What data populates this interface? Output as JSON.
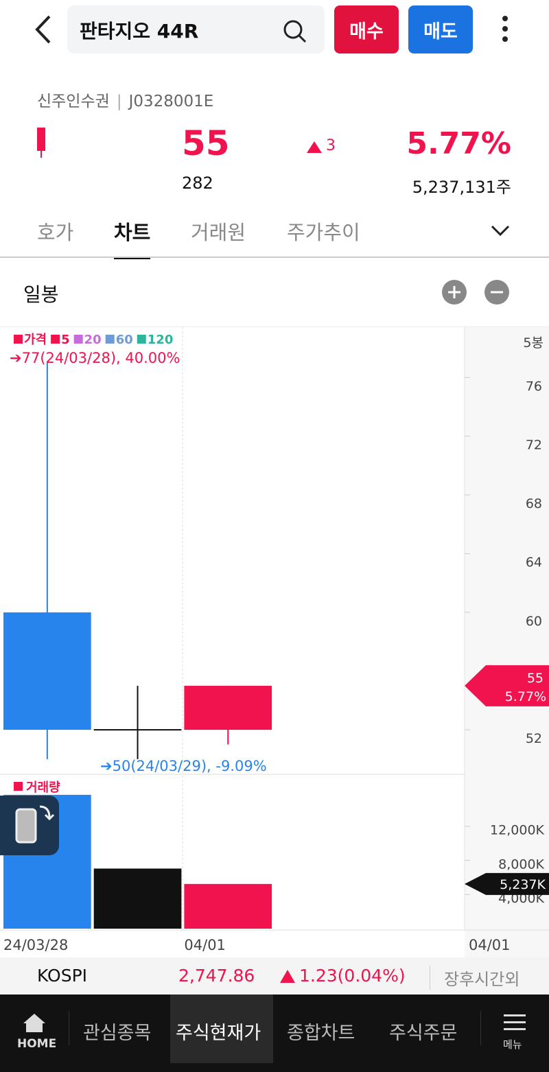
{
  "header": {
    "title": "판타지오 44R",
    "buy": "매수",
    "sell": "매도"
  },
  "info": {
    "kind": "신주인수권",
    "code": "J0328001E",
    "price": "55",
    "change": "3",
    "sub_value": "282",
    "change_rate": "5.77%",
    "volume": "5,237,131주"
  },
  "tabs": [
    "호가",
    "차트",
    "거래원",
    "주가추이"
  ],
  "chart_period": "일봉",
  "chart_data": [
    {
      "type": "candlestick",
      "legend": [
        {
          "name": "가격",
          "color": "#f0134d"
        },
        {
          "name": "5",
          "color": "#f0134d"
        },
        {
          "name": "20",
          "color": "#c66cdb"
        },
        {
          "name": "60",
          "color": "#6f9bd6"
        },
        {
          "name": "120",
          "color": "#2db59c"
        }
      ],
      "annotations": [
        "➔77(24/03/28), 40.00%",
        "➔50(24/03/29), -9.09%"
      ],
      "axis_unit": "5봉",
      "categories": [
        "24/03/28",
        null,
        "04/01"
      ],
      "open": [
        60,
        52,
        52
      ],
      "high": [
        77,
        55,
        55
      ],
      "low": [
        50,
        50,
        51
      ],
      "close": [
        52,
        52,
        55
      ],
      "colors": {
        "up": "#f0134d",
        "down": "#2684ec",
        "flat": "#111111"
      },
      "ylim": [
        49.06,
        79.43
      ],
      "yticks": [
        52,
        60,
        64,
        68,
        72,
        76
      ],
      "current": {
        "value": 55,
        "labels": [
          "55",
          "5.77%"
        ],
        "color": "#f0134d"
      }
    },
    {
      "type": "bar",
      "label": "거래량",
      "categories": [
        "24/03/28",
        null,
        "04/01"
      ],
      "values": [
        15680,
        7040,
        5237
      ],
      "colors": [
        "#2684ec",
        "#111111",
        "#f0134d"
      ],
      "ylim": [
        0,
        18080
      ],
      "yticks": [
        {
          "value": 4000,
          "label": "4,000K"
        },
        {
          "value": 8000,
          "label": "8,000K"
        },
        {
          "value": 12000,
          "label": "12,000K"
        }
      ],
      "current": {
        "value": 5237,
        "label": "5,237K",
        "color": "#111111"
      },
      "axis_date": "04/01"
    }
  ],
  "market": {
    "name": "KOSPI",
    "value": "2,747.86",
    "change": "1.23",
    "rate": "(0.04%)",
    "status": "장후시간외"
  },
  "nav": [
    "HOME",
    "관심종목",
    "주식현재가",
    "종합차트",
    "주식주문",
    "메뉴"
  ]
}
